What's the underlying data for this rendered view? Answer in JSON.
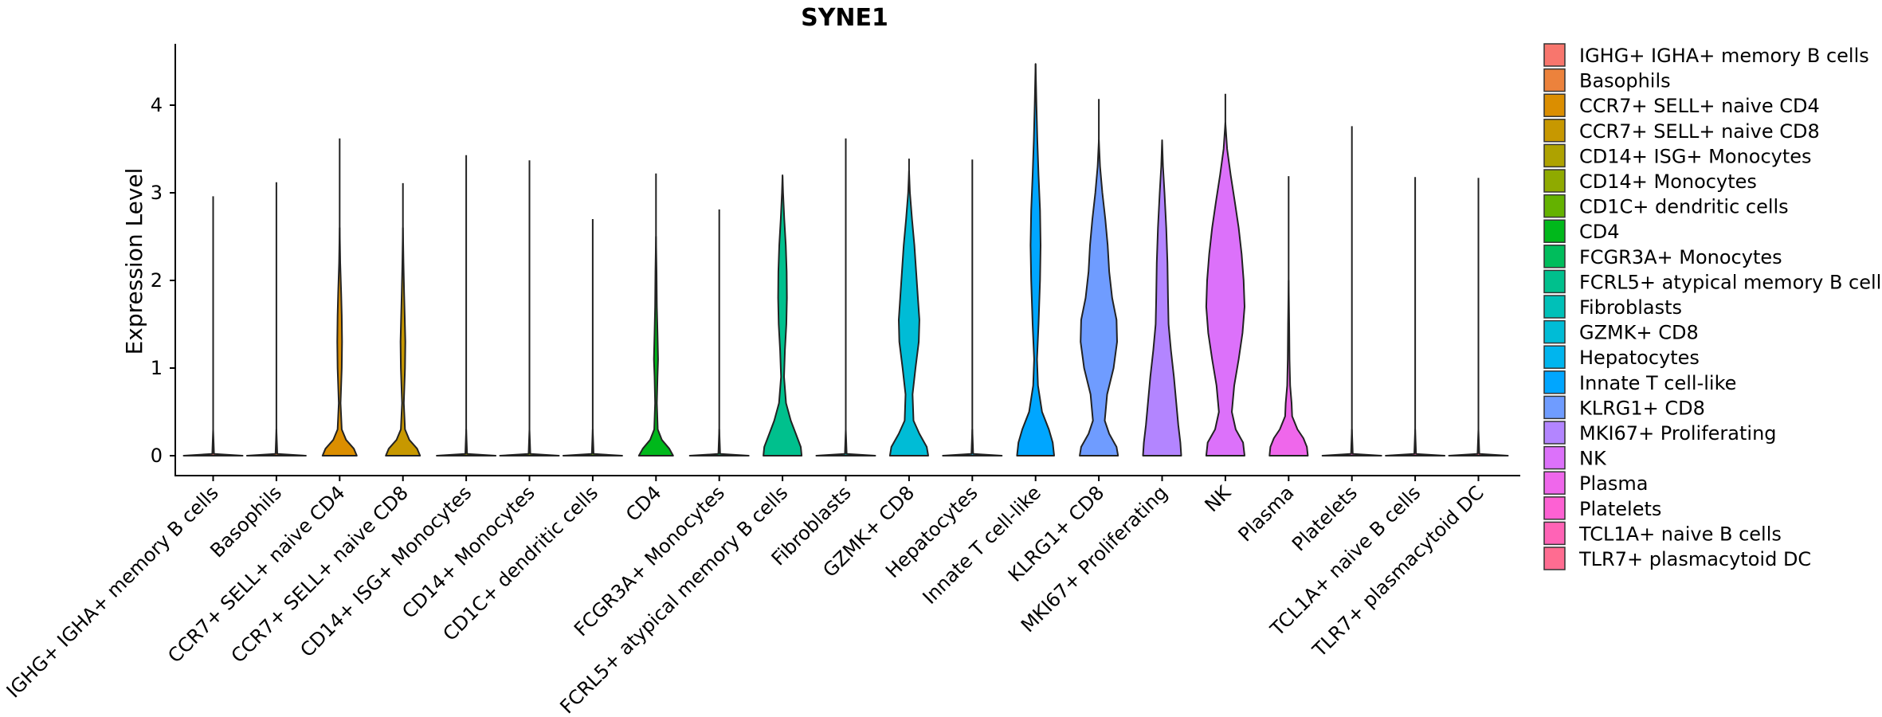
{
  "chart_data": {
    "type": "violin",
    "title": "SYNE1",
    "xlabel": "",
    "ylabel": "Expression Level",
    "ylim": [
      -0.2,
      4.75
    ],
    "yticks": [
      0,
      1,
      2,
      3,
      4
    ],
    "legend_position": "right",
    "categories": [
      " IGHG+ IGHA+ memory B cells",
      "Basophils",
      "CCR7+ SELL+ naive CD4",
      "CCR7+ SELL+ naive CD8",
      "CD14+ ISG+ Monocytes",
      "CD14+ Monocytes",
      "CD1C+ dendritic cells",
      "CD4",
      "FCGR3A+ Monocytes",
      "FCRL5+ atypical memory B cells",
      "Fibroblasts",
      "GZMK+ CD8",
      "Hepatocytes",
      "Innate T cell-like",
      "KLRG1+ CD8",
      "MKI67+ Proliferating",
      "NK",
      "Plasma",
      "Platelets",
      "TCL1A+ naive B cells",
      "TLR7+ plasmacytoid DC"
    ],
    "colors": [
      "#F8766D",
      "#EC823C",
      "#DB8E00",
      "#C79800",
      "#AEA200",
      "#8FAA00",
      "#64B200",
      "#00B81B",
      "#00BD5C",
      "#00C08D",
      "#00C0B8",
      "#00BCD6",
      "#00B5EE",
      "#00A6FF",
      "#6F9CFF",
      "#B385FF",
      "#DC71FA",
      "#EF67EB",
      "#FD61D3",
      "#FF63B6",
      "#FF6C91"
    ],
    "max_values": [
      2.96,
      3.12,
      3.62,
      3.11,
      3.43,
      3.37,
      2.7,
      3.22,
      2.81,
      3.19,
      3.62,
      3.39,
      3.38,
      4.47,
      4.07,
      3.57,
      4.13,
      3.19,
      3.76,
      3.18,
      3.17
    ],
    "violins": [
      [
        [
          0,
          1.0
        ],
        [
          0.02,
          0.03
        ],
        [
          0.3,
          0
        ]
      ],
      [
        [
          0,
          1.0
        ],
        [
          0.02,
          0.03
        ],
        [
          0.3,
          0
        ]
      ],
      [
        [
          0,
          0.58
        ],
        [
          0.08,
          0.48
        ],
        [
          0.18,
          0.22
        ],
        [
          0.3,
          0.07
        ],
        [
          0.6,
          0.03
        ],
        [
          1.0,
          0.07
        ],
        [
          1.3,
          0.08
        ],
        [
          1.6,
          0.07
        ],
        [
          1.85,
          0.05
        ],
        [
          2.2,
          0.02
        ],
        [
          2.6,
          0
        ]
      ],
      [
        [
          0,
          0.58
        ],
        [
          0.08,
          0.48
        ],
        [
          0.18,
          0.22
        ],
        [
          0.3,
          0.07
        ],
        [
          0.6,
          0.03
        ],
        [
          1.0,
          0.07
        ],
        [
          1.3,
          0.08
        ],
        [
          1.6,
          0.06
        ],
        [
          1.85,
          0.04
        ],
        [
          2.2,
          0.02
        ],
        [
          2.6,
          0
        ]
      ],
      [
        [
          0,
          1.0
        ],
        [
          0.02,
          0.03
        ],
        [
          0.3,
          0
        ]
      ],
      [
        [
          0,
          1.0
        ],
        [
          0.02,
          0.03
        ],
        [
          0.3,
          0
        ]
      ],
      [
        [
          0,
          1.0
        ],
        [
          0.02,
          0.03
        ],
        [
          0.3,
          0
        ]
      ],
      [
        [
          0,
          0.58
        ],
        [
          0.08,
          0.45
        ],
        [
          0.18,
          0.2
        ],
        [
          0.3,
          0.06
        ],
        [
          0.6,
          0.03
        ],
        [
          0.9,
          0.05
        ],
        [
          1.1,
          0.07
        ],
        [
          1.4,
          0.05
        ],
        [
          1.7,
          0.03
        ],
        [
          2.1,
          0.02
        ],
        [
          2.5,
          0
        ]
      ],
      [
        [
          0,
          1.0
        ],
        [
          0.02,
          0.03
        ],
        [
          0.3,
          0
        ]
      ],
      [
        [
          0,
          0.65
        ],
        [
          0.1,
          0.62
        ],
        [
          0.25,
          0.45
        ],
        [
          0.4,
          0.28
        ],
        [
          0.6,
          0.12
        ],
        [
          0.9,
          0.05
        ],
        [
          1.2,
          0.08
        ],
        [
          1.5,
          0.13
        ],
        [
          1.8,
          0.15
        ],
        [
          2.1,
          0.14
        ],
        [
          2.4,
          0.11
        ],
        [
          2.7,
          0.06
        ],
        [
          3.0,
          0.02
        ],
        [
          3.2,
          0
        ]
      ],
      [
        [
          0,
          1.0
        ],
        [
          0.02,
          0.03
        ],
        [
          0.3,
          0
        ]
      ],
      [
        [
          0,
          0.65
        ],
        [
          0.1,
          0.6
        ],
        [
          0.25,
          0.35
        ],
        [
          0.4,
          0.15
        ],
        [
          0.7,
          0.12
        ],
        [
          1.0,
          0.22
        ],
        [
          1.3,
          0.33
        ],
        [
          1.55,
          0.35
        ],
        [
          1.8,
          0.3
        ],
        [
          2.1,
          0.24
        ],
        [
          2.4,
          0.18
        ],
        [
          2.7,
          0.1
        ],
        [
          3.0,
          0.03
        ],
        [
          3.25,
          0
        ]
      ],
      [
        [
          0,
          1.0
        ],
        [
          0.02,
          0.03
        ],
        [
          0.3,
          0
        ]
      ],
      [
        [
          0,
          0.63
        ],
        [
          0.15,
          0.58
        ],
        [
          0.3,
          0.45
        ],
        [
          0.5,
          0.22
        ],
        [
          0.8,
          0.08
        ],
        [
          1.1,
          0.05
        ],
        [
          1.5,
          0.1
        ],
        [
          2.0,
          0.15
        ],
        [
          2.4,
          0.17
        ],
        [
          2.8,
          0.15
        ],
        [
          3.2,
          0.1
        ],
        [
          3.6,
          0.06
        ],
        [
          4.0,
          0.03
        ],
        [
          4.47,
          0
        ]
      ],
      [
        [
          0,
          0.65
        ],
        [
          0.1,
          0.6
        ],
        [
          0.25,
          0.35
        ],
        [
          0.4,
          0.2
        ],
        [
          0.7,
          0.28
        ],
        [
          1.0,
          0.5
        ],
        [
          1.3,
          0.62
        ],
        [
          1.55,
          0.6
        ],
        [
          1.8,
          0.45
        ],
        [
          2.1,
          0.35
        ],
        [
          2.4,
          0.3
        ],
        [
          2.7,
          0.22
        ],
        [
          3.0,
          0.12
        ],
        [
          3.3,
          0.04
        ],
        [
          3.6,
          0
        ]
      ],
      [
        [
          0,
          0.65
        ],
        [
          0.15,
          0.62
        ],
        [
          0.35,
          0.55
        ],
        [
          0.6,
          0.48
        ],
        [
          0.9,
          0.4
        ],
        [
          1.2,
          0.3
        ],
        [
          1.5,
          0.22
        ],
        [
          1.8,
          0.2
        ],
        [
          2.2,
          0.18
        ],
        [
          2.6,
          0.14
        ],
        [
          3.0,
          0.08
        ],
        [
          3.3,
          0.03
        ],
        [
          3.6,
          0
        ]
      ],
      [
        [
          0,
          0.65
        ],
        [
          0.15,
          0.6
        ],
        [
          0.3,
          0.35
        ],
        [
          0.5,
          0.22
        ],
        [
          0.8,
          0.3
        ],
        [
          1.1,
          0.45
        ],
        [
          1.4,
          0.58
        ],
        [
          1.7,
          0.65
        ],
        [
          2.0,
          0.62
        ],
        [
          2.3,
          0.55
        ],
        [
          2.6,
          0.45
        ],
        [
          2.9,
          0.32
        ],
        [
          3.2,
          0.18
        ],
        [
          3.5,
          0.06
        ],
        [
          3.8,
          0
        ]
      ],
      [
        [
          0,
          0.65
        ],
        [
          0.1,
          0.62
        ],
        [
          0.2,
          0.5
        ],
        [
          0.3,
          0.3
        ],
        [
          0.45,
          0.12
        ],
        [
          0.6,
          0.1
        ],
        [
          0.8,
          0.05
        ],
        [
          1.1,
          0.03
        ],
        [
          1.5,
          0.02
        ],
        [
          2.0,
          0
        ]
      ],
      [
        [
          0,
          1.0
        ],
        [
          0.02,
          0.03
        ],
        [
          0.3,
          0
        ]
      ],
      [
        [
          0,
          1.0
        ],
        [
          0.02,
          0.03
        ],
        [
          0.3,
          0
        ]
      ],
      [
        [
          0,
          1.0
        ],
        [
          0.02,
          0.03
        ],
        [
          0.3,
          0
        ]
      ]
    ]
  }
}
